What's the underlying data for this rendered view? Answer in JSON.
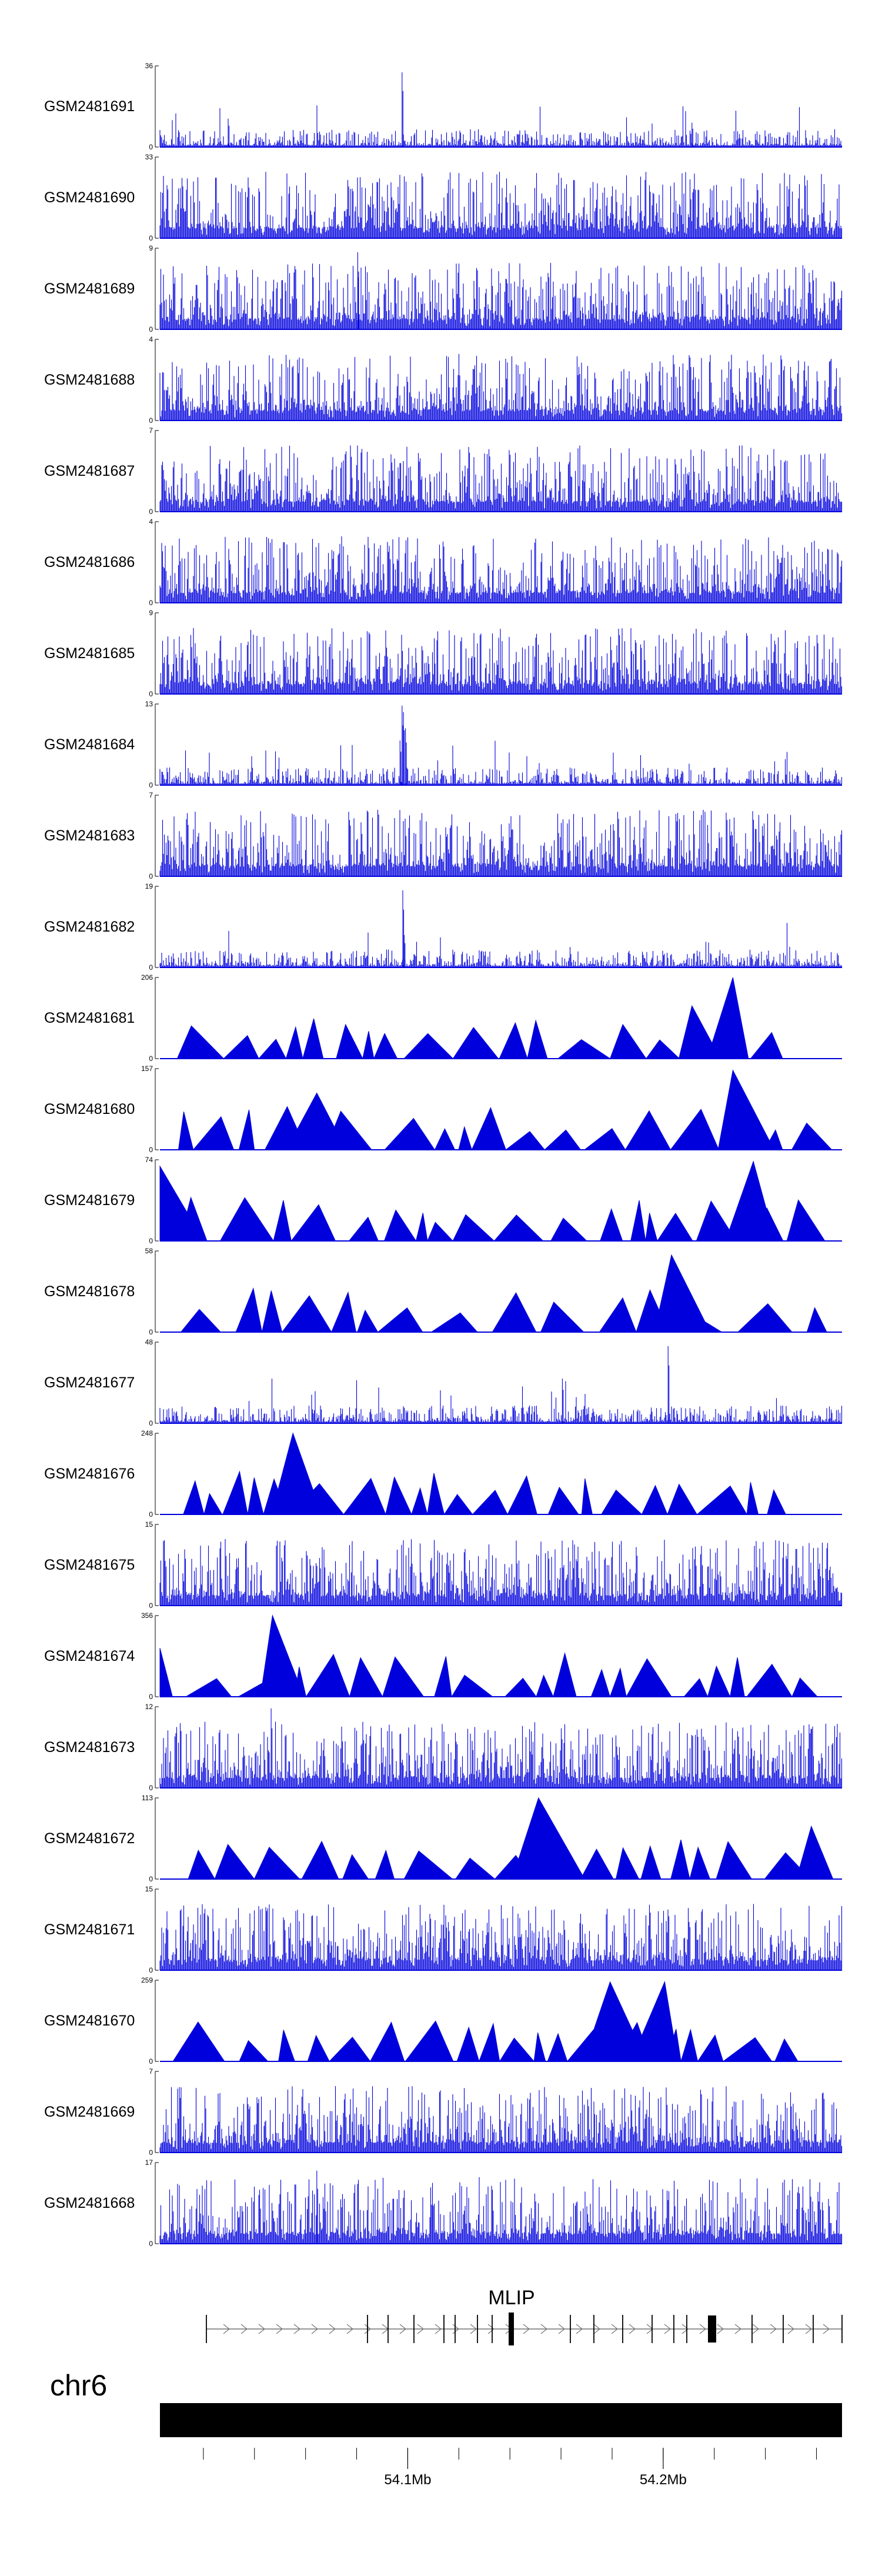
{
  "chart_data": {
    "type": "area",
    "series": [
      {
        "name": "GSM2481691",
        "ymax": "36",
        "ymin": "0",
        "style": "spiky",
        "peaks": [
          [
            0.355,
            0.92
          ],
          [
            0.1,
            0.35
          ],
          [
            0.78,
            0.3
          ]
        ]
      },
      {
        "name": "GSM2481690",
        "ymax": "33",
        "ymin": "0",
        "style": "dense",
        "peaks": []
      },
      {
        "name": "GSM2481689",
        "ymax": "9",
        "ymin": "0",
        "style": "dense",
        "peaks": [
          [
            0.29,
            0.95
          ]
        ]
      },
      {
        "name": "GSM2481688",
        "ymax": "4",
        "ymin": "0",
        "style": "dense",
        "peaks": []
      },
      {
        "name": "GSM2481687",
        "ymax": "7",
        "ymin": "0",
        "style": "dense",
        "peaks": []
      },
      {
        "name": "GSM2481686",
        "ymax": "4",
        "ymin": "0",
        "style": "dense",
        "peaks": []
      },
      {
        "name": "GSM2481685",
        "ymax": "9",
        "ymin": "0",
        "style": "dense",
        "peaks": []
      },
      {
        "name": "GSM2481684",
        "ymax": "13",
        "ymin": "0",
        "style": "spiky",
        "peaks": [
          [
            0.355,
            0.98
          ],
          [
            0.357,
            0.9
          ],
          [
            0.36,
            0.7
          ],
          [
            0.352,
            0.55
          ]
        ]
      },
      {
        "name": "GSM2481683",
        "ymax": "7",
        "ymin": "0",
        "style": "dense",
        "peaks": []
      },
      {
        "name": "GSM2481682",
        "ymax": "19",
        "ymin": "0",
        "style": "spiky",
        "peaks": [
          [
            0.356,
            0.95
          ],
          [
            0.358,
            0.4
          ]
        ]
      },
      {
        "name": "GSM2481681",
        "ymax": "206",
        "ymin": "0",
        "style": "tri",
        "peaks": [
          [
            0.84,
            1.0
          ],
          [
            0.78,
            0.65
          ]
        ]
      },
      {
        "name": "GSM2481680",
        "ymax": "157",
        "ymin": "0",
        "style": "tri",
        "peaks": [
          [
            0.84,
            0.98
          ],
          [
            0.23,
            0.7
          ]
        ]
      },
      {
        "name": "GSM2481679",
        "ymax": "74",
        "ymin": "0",
        "style": "tri",
        "peaks": [
          [
            0.0,
            0.92
          ],
          [
            0.87,
            0.98
          ]
        ]
      },
      {
        "name": "GSM2481678",
        "ymax": "58",
        "ymin": "0",
        "style": "tri",
        "peaks": [
          [
            0.75,
            0.95
          ]
        ]
      },
      {
        "name": "GSM2481677",
        "ymax": "48",
        "ymin": "0",
        "style": "spiky",
        "peaks": [
          [
            0.745,
            0.95
          ],
          [
            0.59,
            0.55
          ]
        ]
      },
      {
        "name": "GSM2481676",
        "ymax": "248",
        "ymin": "0",
        "style": "tri",
        "peaks": [
          [
            0.195,
            1.0
          ]
        ]
      },
      {
        "name": "GSM2481675",
        "ymax": "15",
        "ymin": "0",
        "style": "dense",
        "peaks": []
      },
      {
        "name": "GSM2481674",
        "ymax": "356",
        "ymin": "0",
        "style": "tri",
        "peaks": [
          [
            0.165,
            1.0
          ],
          [
            0.0,
            0.6
          ]
        ]
      },
      {
        "name": "GSM2481673",
        "ymax": "12",
        "ymin": "0",
        "style": "dense",
        "peaks": [
          [
            0.163,
            0.98
          ]
        ]
      },
      {
        "name": "GSM2481672",
        "ymax": "113",
        "ymin": "0",
        "style": "tri",
        "peaks": [
          [
            0.555,
            1.0
          ],
          [
            0.955,
            0.65
          ]
        ]
      },
      {
        "name": "GSM2481671",
        "ymax": "15",
        "ymin": "0",
        "style": "dense",
        "peaks": []
      },
      {
        "name": "GSM2481670",
        "ymax": "259",
        "ymin": "0",
        "style": "tri",
        "peaks": [
          [
            0.66,
            0.98
          ],
          [
            0.74,
            0.98
          ]
        ]
      },
      {
        "name": "GSM2481669",
        "ymax": "7",
        "ymin": "0",
        "style": "dense",
        "peaks": []
      },
      {
        "name": "GSM2481668",
        "ymax": "17",
        "ymin": "0",
        "style": "dense",
        "peaks": [
          [
            0.23,
            0.9
          ]
        ]
      }
    ],
    "gene": {
      "name": "MLIP",
      "strand": "+"
    },
    "chromosome": "chr6",
    "x_ticks": [
      {
        "pos": 54.1,
        "label": "54.1Mb"
      },
      {
        "pos": 54.2,
        "label": "54.2Mb"
      }
    ],
    "xlim": [
      54.003,
      54.27
    ],
    "colors": {
      "signal": "#0000dd",
      "gene": "#000000",
      "chrom": "#000000"
    }
  }
}
